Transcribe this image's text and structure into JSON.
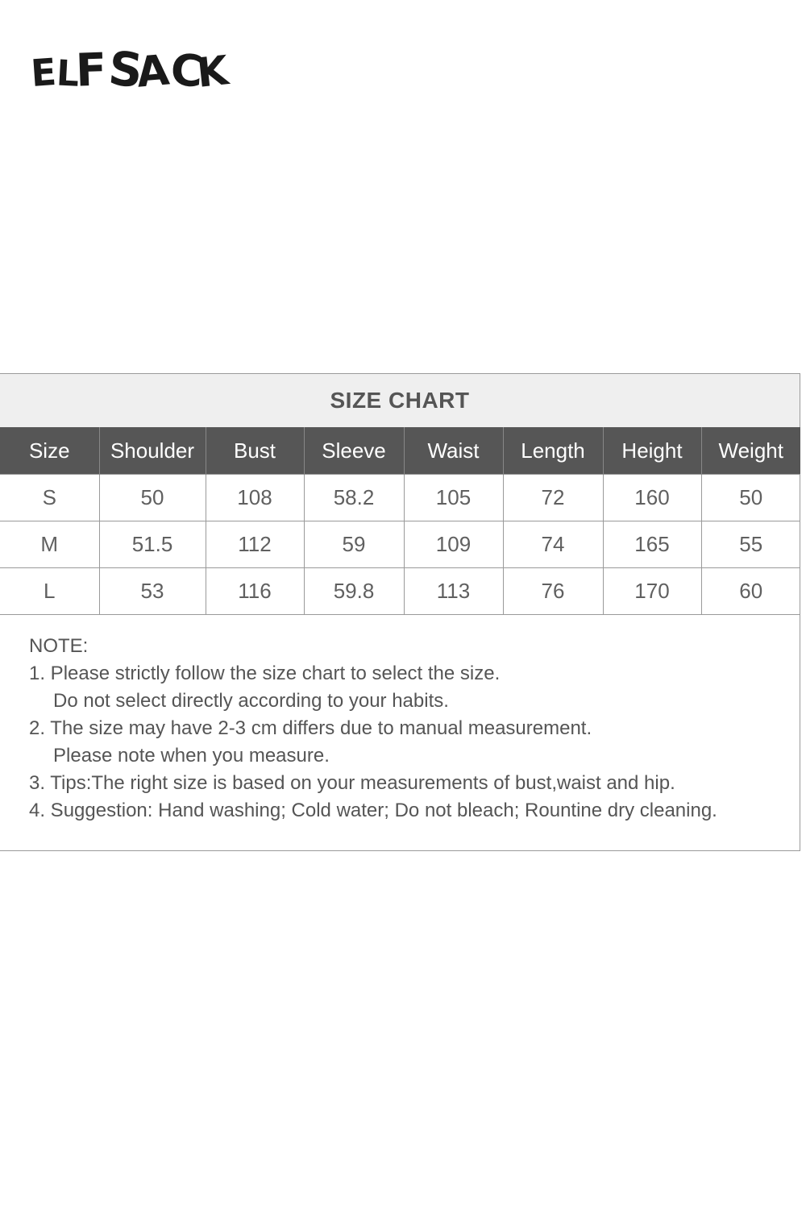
{
  "brand": {
    "logo_text": "ELFSACK"
  },
  "size_chart": {
    "title": "SIZE CHART",
    "columns": [
      "Size",
      "Shoulder",
      "Bust",
      "Sleeve",
      "Waist",
      "Length",
      "Height",
      "Weight"
    ],
    "rows": [
      [
        "S",
        "50",
        "108",
        "58.2",
        "105",
        "72",
        "160",
        "50"
      ],
      [
        "M",
        "51.5",
        "112",
        "59",
        "109",
        "74",
        "165",
        "55"
      ],
      [
        "L",
        "53",
        "116",
        "59.8",
        "113",
        "76",
        "170",
        "60"
      ]
    ]
  },
  "notes": {
    "heading": "NOTE:",
    "lines": [
      "1. Please strictly follow the size chart to select the size.",
      "Do not select directly according to your habits.",
      "2. The size may have 2-3 cm differs due to manual measurement.",
      "Please note when you measure.",
      "3. Tips:The right size is based on your measurements of bust,waist and hip.",
      "4. Suggestion: Hand washing; Cold water; Do not bleach; Rountine dry cleaning."
    ]
  }
}
